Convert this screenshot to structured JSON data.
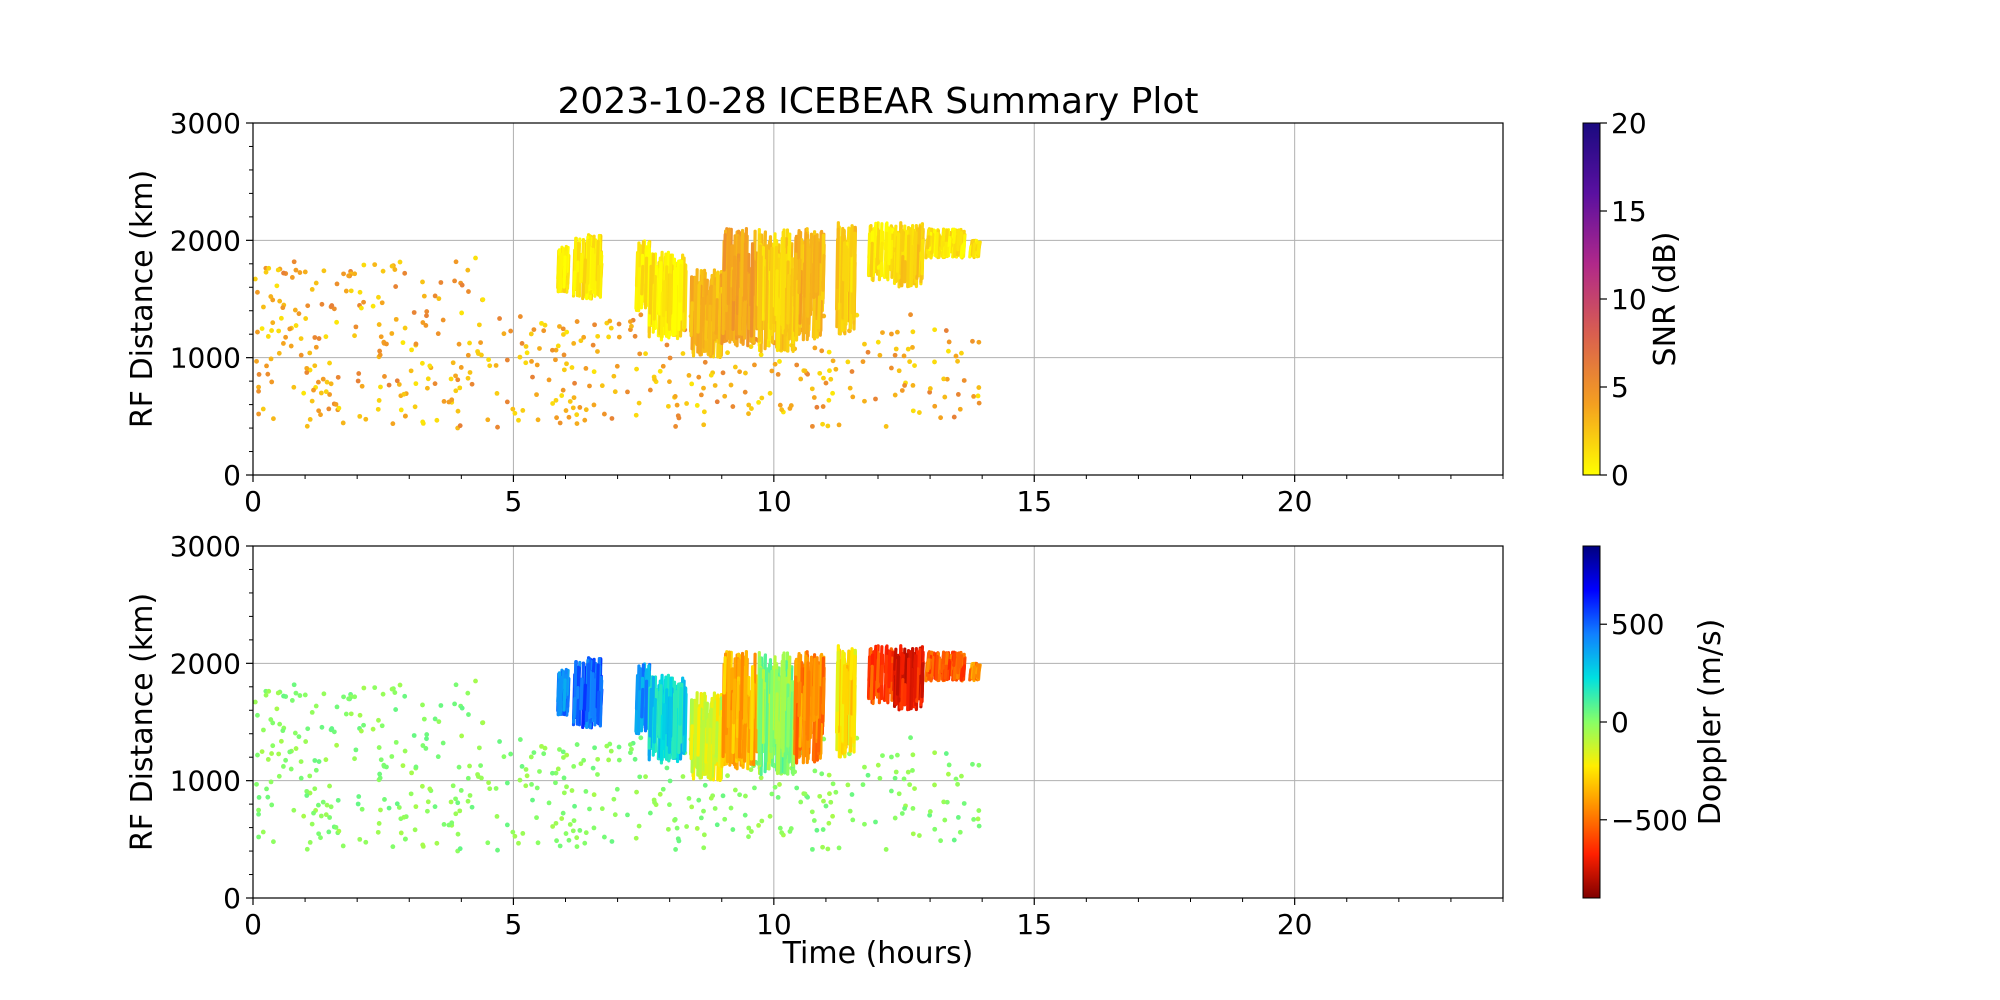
{
  "chart_data": [
    {
      "type": "scatter",
      "title": "2023-10-28 ICEBEAR Summary Plot",
      "xlabel": "",
      "ylabel": "RF Distance (km)",
      "xlim": [
        0,
        24
      ],
      "ylim": [
        0,
        3000
      ],
      "x_ticks": [
        "0",
        "5",
        "10",
        "15",
        "20"
      ],
      "y_ticks": [
        "0",
        "1000",
        "2000",
        "3000"
      ],
      "grid": true,
      "color_variable": "SNR",
      "colorbar": {
        "label": "SNR (dB)",
        "range": [
          0,
          20
        ],
        "ticks": [
          "0",
          "5",
          "10",
          "15",
          "20"
        ],
        "colormap": [
          "#ffff00",
          "#f4a020",
          "#d95f4f",
          "#b0288a",
          "#5a10a0",
          "#1a0a80"
        ]
      },
      "dense_clusters": [
        {
          "t": [
            5.85,
            6.05
          ],
          "r": [
            1550,
            1950
          ],
          "value": 1
        },
        {
          "t": [
            6.15,
            6.7
          ],
          "r": [
            1500,
            2050
          ],
          "value": 1
        },
        {
          "t": [
            7.35,
            7.6
          ],
          "r": [
            1400,
            2000
          ],
          "value": 1
        },
        {
          "t": [
            7.6,
            8.3
          ],
          "r": [
            1150,
            1900
          ],
          "value": 1
        },
        {
          "t": [
            8.4,
            9.0
          ],
          "r": [
            1000,
            1750
          ],
          "value": 3
        },
        {
          "t": [
            9.0,
            9.7
          ],
          "r": [
            1100,
            2100
          ],
          "value": 4
        },
        {
          "t": [
            9.7,
            10.4
          ],
          "r": [
            1050,
            2100
          ],
          "value": 2
        },
        {
          "t": [
            10.4,
            10.95
          ],
          "r": [
            1150,
            2100
          ],
          "value": 3
        },
        {
          "t": [
            11.2,
            11.55
          ],
          "r": [
            1200,
            2150
          ],
          "value": 2
        },
        {
          "t": [
            11.8,
            12.3
          ],
          "r": [
            1650,
            2150
          ],
          "value": 1
        },
        {
          "t": [
            12.3,
            12.85
          ],
          "r": [
            1600,
            2150
          ],
          "value": 2
        },
        {
          "t": [
            12.9,
            13.65
          ],
          "r": [
            1850,
            2100
          ],
          "value": 1
        },
        {
          "t": [
            13.75,
            13.95
          ],
          "r": [
            1850,
            2000
          ],
          "value": 1
        }
      ],
      "sparse_scatter": {
        "t": [
          0,
          14
        ],
        "r": [
          400,
          1850
        ],
        "value_range": [
          1,
          6
        ]
      }
    },
    {
      "type": "scatter",
      "title": "",
      "xlabel": "Time (hours)",
      "ylabel": "RF Distance (km)",
      "xlim": [
        0,
        24
      ],
      "ylim": [
        0,
        3000
      ],
      "x_ticks": [
        "0",
        "5",
        "10",
        "15",
        "20"
      ],
      "y_ticks": [
        "0",
        "1000",
        "2000",
        "3000"
      ],
      "grid": true,
      "color_variable": "Doppler",
      "colorbar": {
        "label": "Doppler (m/s)",
        "range": [
          -900,
          900
        ],
        "ticks": [
          "−500",
          "0",
          "500"
        ],
        "tick_values": [
          -500,
          0,
          500
        ],
        "colormap": [
          "#7f0000",
          "#ff2000",
          "#ff8800",
          "#ffee00",
          "#88ff66",
          "#00e0e0",
          "#1080ff",
          "#0000ff",
          "#00007f"
        ]
      },
      "dense_clusters": [
        {
          "t": [
            5.85,
            6.05
          ],
          "r": [
            1550,
            1950
          ],
          "value": 450
        },
        {
          "t": [
            6.15,
            6.7
          ],
          "r": [
            1450,
            2050
          ],
          "value": 500
        },
        {
          "t": [
            7.35,
            7.6
          ],
          "r": [
            1400,
            2000
          ],
          "value": 400
        },
        {
          "t": [
            7.6,
            8.3
          ],
          "r": [
            1150,
            1900
          ],
          "value": 250
        },
        {
          "t": [
            8.4,
            9.0
          ],
          "r": [
            1000,
            1750
          ],
          "value": -150
        },
        {
          "t": [
            9.0,
            9.7
          ],
          "r": [
            1100,
            2100
          ],
          "value": -350
        },
        {
          "t": [
            9.7,
            10.4
          ],
          "r": [
            1050,
            2100
          ],
          "value": 0
        },
        {
          "t": [
            10.4,
            10.95
          ],
          "r": [
            1150,
            2100
          ],
          "value": -450
        },
        {
          "t": [
            11.2,
            11.55
          ],
          "r": [
            1200,
            2150
          ],
          "value": -250
        },
        {
          "t": [
            11.8,
            12.3
          ],
          "r": [
            1650,
            2150
          ],
          "value": -600
        },
        {
          "t": [
            12.3,
            12.85
          ],
          "r": [
            1600,
            2150
          ],
          "value": -700
        },
        {
          "t": [
            12.9,
            13.65
          ],
          "r": [
            1850,
            2100
          ],
          "value": -550
        },
        {
          "t": [
            13.75,
            13.95
          ],
          "r": [
            1850,
            2000
          ],
          "value": -450
        }
      ],
      "sparse_scatter": {
        "t": [
          0,
          14
        ],
        "r": [
          400,
          1850
        ],
        "value_range": [
          -60,
          60
        ]
      }
    }
  ]
}
